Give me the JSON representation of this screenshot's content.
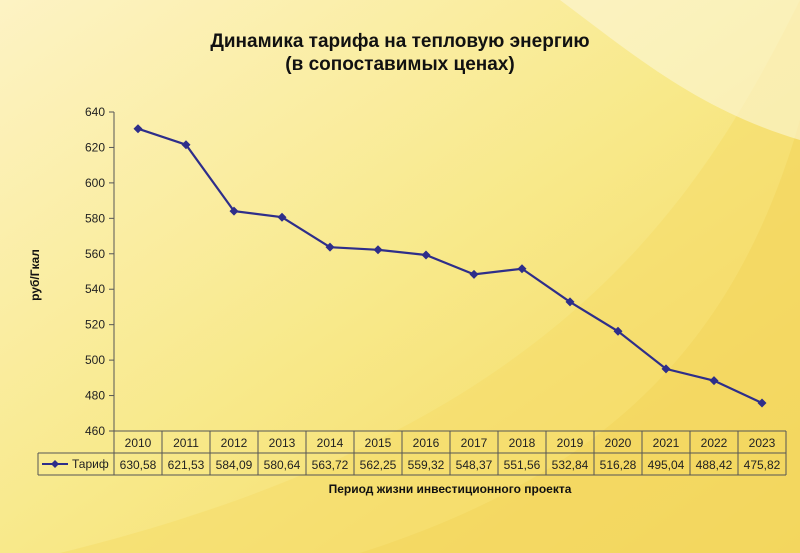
{
  "chart_data": {
    "type": "line",
    "title": "Динамика тарифа на тепловую энергию",
    "subtitle": "(в сопоставимых ценах)",
    "xlabel": "Период жизни инвестиционного проекта",
    "ylabel": "руб/Гкал",
    "ylim": [
      460,
      640
    ],
    "yticks": [
      460,
      480,
      500,
      520,
      540,
      560,
      580,
      600,
      620,
      640
    ],
    "categories": [
      "2010",
      "2011",
      "2012",
      "2013",
      "2014",
      "2015",
      "2016",
      "2017",
      "2018",
      "2019",
      "2020",
      "2021",
      "2022",
      "2023"
    ],
    "series": [
      {
        "name": "Тариф",
        "values": [
          630.58,
          621.53,
          584.09,
          580.64,
          563.72,
          562.25,
          559.32,
          548.37,
          551.56,
          532.84,
          516.28,
          495.04,
          488.42,
          475.82
        ],
        "labels": [
          "630,58",
          "621,53",
          "584,09",
          "580,64",
          "563,72",
          "562,25",
          "559,32",
          "548,37",
          "551,56",
          "532,84",
          "516,28",
          "495,04",
          "488,42",
          "475,82"
        ],
        "color": "#2e2e8a"
      }
    ],
    "legend": "data-table",
    "grid": false
  }
}
